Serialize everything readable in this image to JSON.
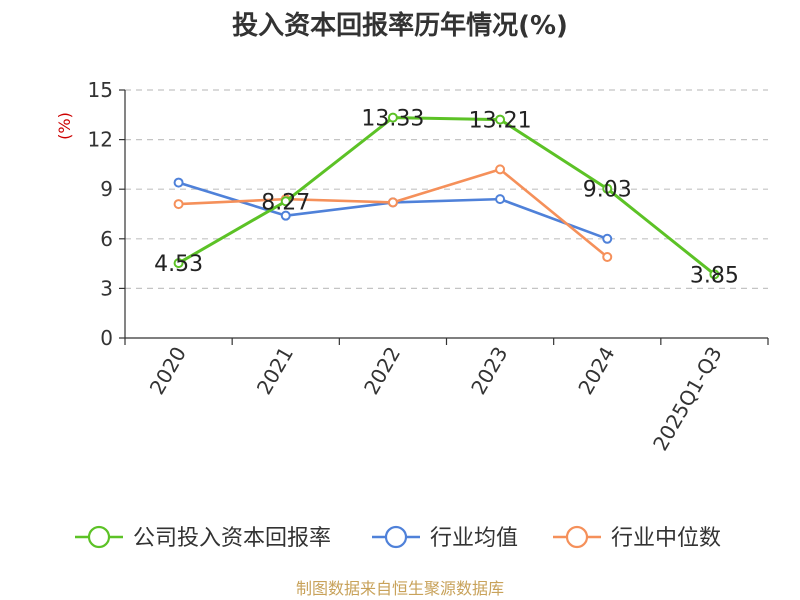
{
  "chart_data": {
    "type": "line",
    "title": "投入资本回报率历年情况(%)",
    "ylabel_unit": "(%)",
    "categories": [
      "2020",
      "2021",
      "2022",
      "2023",
      "2024",
      "2025Q1-Q3"
    ],
    "ylim": [
      0,
      15
    ],
    "yticks": [
      0,
      3,
      6,
      9,
      12,
      15
    ],
    "grid": "horizontal dashed",
    "legend_position": "bottom",
    "series": [
      {
        "name": "公司投入资本回报率",
        "color": "#5cc226",
        "values": [
          4.53,
          8.27,
          13.33,
          13.21,
          9.03,
          3.85
        ],
        "labels": [
          "4.53",
          "8.27",
          "13.33",
          "13.21",
          "9.03",
          "3.85"
        ]
      },
      {
        "name": "行业均值",
        "color": "#4f81d9",
        "values": [
          9.4,
          7.4,
          8.2,
          8.4,
          6.0,
          null
        ]
      },
      {
        "name": "行业中位数",
        "color": "#f5905a",
        "values": [
          8.1,
          8.4,
          8.2,
          10.2,
          4.9,
          null
        ]
      }
    ]
  },
  "source": "制图数据来自恒生聚源数据库"
}
